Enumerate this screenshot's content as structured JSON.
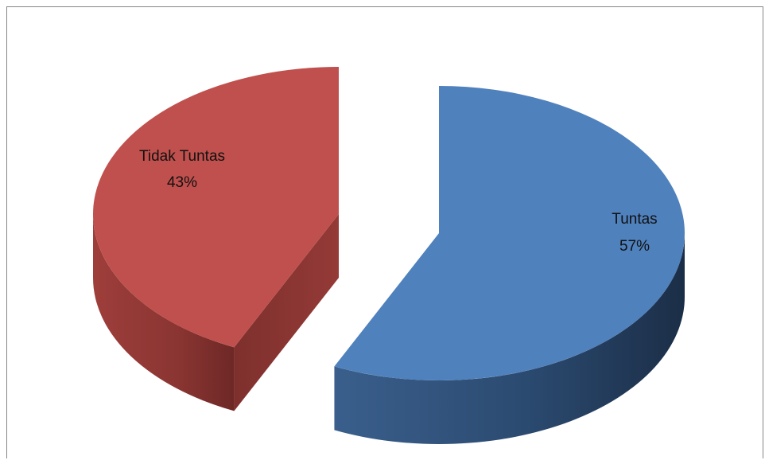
{
  "chart_data": {
    "type": "pie",
    "style": "3d-exploded",
    "title": "",
    "categories": [
      "Tuntas",
      "Tidak Tuntas"
    ],
    "values": [
      57,
      43
    ],
    "unit": "%",
    "colors": [
      "#4F81BD",
      "#C0504D"
    ],
    "labels": [
      {
        "name": "Tuntas",
        "percent": "57%"
      },
      {
        "name": "Tidak Tuntas",
        "percent": "43%"
      }
    ],
    "legend": "none"
  }
}
